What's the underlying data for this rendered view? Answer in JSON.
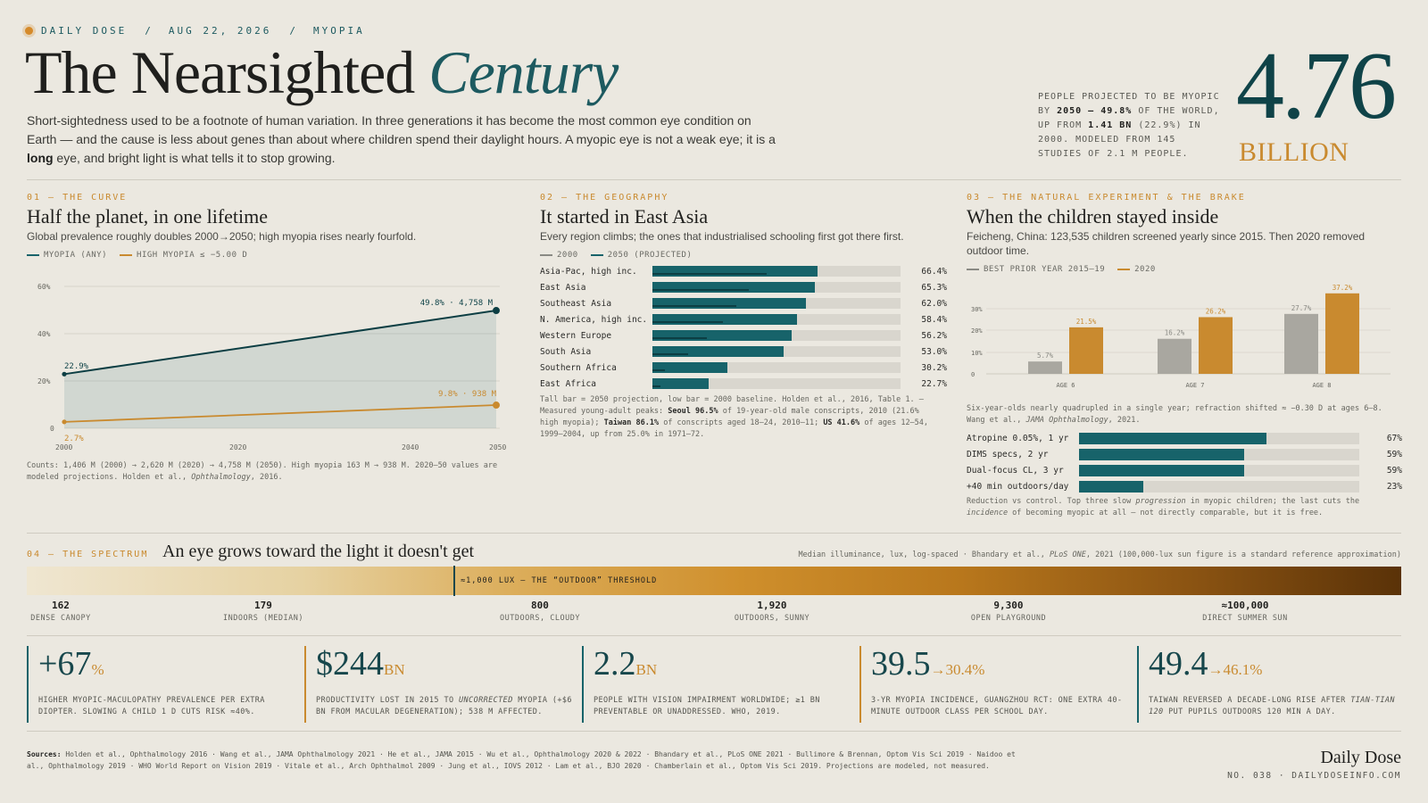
{
  "header": {
    "brand": "DAILY DOSE",
    "sep": "/",
    "date": "AUG 22, 2026",
    "topic": "MYOPIA",
    "title_main": "The Nearsighted",
    "title_accent": "Century",
    "intro_a": "Short-sightedness used to be a footnote of human variation. In three generations it has become the most common eye condition on Earth — and the cause is less about genes than about where children spend their daylight hours. A myopic eye is not a weak eye; it is a ",
    "intro_bold": "long",
    "intro_b": " eye, and bright light is what tells it to stop growing."
  },
  "headline_stat": {
    "caption_1": "PEOPLE PROJECTED TO BE MYOPIC BY ",
    "caption_b1": "2050 — 49.8%",
    "caption_2": " OF THE WORLD, UP FROM ",
    "caption_b2": "1.41 BN",
    "caption_3": " (22.9%) IN 2000. MODELED FROM 145 STUDIES OF 2.1 M PEOPLE.",
    "value": "4.76",
    "unit": "BILLION"
  },
  "sec1": {
    "kicker": "01 — THE CURVE",
    "title": "Half the planet, in one lifetime",
    "subtitle": "Global prevalence roughly doubles 2000→2050; high myopia rises nearly fourfold.",
    "legend_a": "MYOPIA (ANY)",
    "legend_b": "HIGH MYOPIA ≤ −5.00 D",
    "label_start_any": "22.9%",
    "label_end_any": "49.8% · 4,758 M",
    "label_start_high": "2.7%",
    "label_end_high": "9.8% · 938 M",
    "note": "Counts: 1,406 M (2000) → 2,620 M (2020) → 4,758 M (2050). High myopia 163 M → 938 M. 2020–50 values are modeled projections. Holden et al., ",
    "note_i": "Ophthalmology",
    "note_end": ", 2016."
  },
  "sec2": {
    "kicker": "02 — THE GEOGRAPHY",
    "title": "It started in East Asia",
    "subtitle": "Every region climbs; the ones that industrialised schooling first got there first.",
    "legend_a": "2000",
    "legend_b": "2050 (PROJECTED)",
    "note_1": "Tall bar = 2050 projection, low bar = 2000 baseline. Holden et al., 2016, Table 1. — Measured young-adult peaks: ",
    "note_b1": "Seoul 96.5%",
    "note_2": " of 19-year-old male conscripts, 2010 (21.6% high myopia); ",
    "note_b2": "Taiwan 86.1%",
    "note_3": " of conscripts aged 18–24, 2010–11; ",
    "note_b3": "US 41.6%",
    "note_4": " of ages 12–54, 1999–2004, up from 25.0% in 1971–72."
  },
  "sec3": {
    "kicker": "03 — THE NATURAL EXPERIMENT & THE BRAKE",
    "title": "When the children stayed inside",
    "subtitle": "Feicheng, China: 123,535 children screened yearly since 2015. Then 2020 removed outdoor time.",
    "legend_a": "BEST PRIOR YEAR 2015–19",
    "legend_b": "2020",
    "note_1": "Six-year-olds nearly quadrupled in a single year; refraction shifted ≈ −0.30 D at ages 6–8. Wang et al., ",
    "note_i1": "JAMA Ophthalmology",
    "note_2": ", 2021.",
    "brakes": [
      {
        "label": "Atropine 0.05%, 1 yr",
        "value": 67,
        "display": "67%"
      },
      {
        "label": "DIMS specs, 2 yr",
        "value": 59,
        "display": "59%"
      },
      {
        "label": "Dual-focus CL, 3 yr",
        "value": 59,
        "display": "59%"
      },
      {
        "label": "+40 min outdoors/day",
        "value": 23,
        "display": "23%"
      }
    ],
    "brake_note_1": "Reduction vs control. Top three slow ",
    "brake_note_i1": "progression",
    "brake_note_2": " in myopic children; the last cuts the ",
    "brake_note_i2": "incidence",
    "brake_note_3": " of becoming myopic at all — not directly comparable, but it is free."
  },
  "sec4": {
    "kicker": "04 — THE SPECTRUM",
    "title": "An eye grows toward the light it doesn't get",
    "source_1": "Median illuminance, lux, log-spaced · Bhandary et al., ",
    "source_i": "PLoS ONE",
    "source_2": ", 2021 (100,000-lux sun figure is a standard reference approximation)",
    "threshold_label": "≈1,000 LUX — THE “OUTDOOR” THRESHOLD",
    "threshold_lux": 1000,
    "stops": [
      {
        "value": "162",
        "caption": "DENSE CANOPY",
        "lux": 162
      },
      {
        "value": "179",
        "caption": "INDOORS (MEDIAN)",
        "lux": 179
      },
      {
        "value": "800",
        "caption": "OUTDOORS, CLOUDY",
        "lux": 800
      },
      {
        "value": "1,920",
        "caption": "OUTDOORS, SUNNY",
        "lux": 1920
      },
      {
        "value": "9,300",
        "caption": "OPEN PLAYGROUND",
        "lux": 9300
      },
      {
        "value": "≈100,000",
        "caption": "DIRECT SUMMER SUN",
        "lux": 100000
      }
    ]
  },
  "stats": [
    {
      "big": "+67",
      "suffix": "%",
      "caption": "HIGHER MYOPIC-MACULOPATHY PREVALENCE PER EXTRA DIOPTER. SLOWING A CHILD 1 D CUTS RISK ≈40%."
    },
    {
      "big": "$244",
      "suffix": "BN",
      "caption_a": "PRODUCTIVITY LOST IN 2015 TO ",
      "caption_i": "UNCORRECTED",
      "caption_b": " MYOPIA (+$6 BN FROM MACULAR DEGENERATION); 538 M AFFECTED."
    },
    {
      "big": "2.2",
      "suffix": "BN",
      "caption": "PEOPLE WITH VISION IMPAIRMENT WORLDWIDE; ≥1 BN PREVENTABLE OR UNADDRESSED. WHO, 2019."
    },
    {
      "big": "39.5",
      "suffix": "→30.4%",
      "caption": "3-YR MYOPIA INCIDENCE, GUANGZHOU RCT: ONE EXTRA 40-MINUTE OUTDOOR CLASS PER SCHOOL DAY."
    },
    {
      "big": "49.4",
      "suffix": "→46.1%",
      "caption_a": "TAIWAN REVERSED A DECADE-LONG RISE AFTER ",
      "caption_i": "TIAN-TIAN 120",
      "caption_b": " PUT PUPILS OUTDOORS 120 MIN A DAY."
    }
  ],
  "footer": {
    "sources_label": "Sources:",
    "sources_text": " Holden et al., Ophthalmology 2016 · Wang et al., JAMA Ophthalmology 2021 · He et al., JAMA 2015 · Wu et al., Ophthalmology 2020 & 2022 · Bhandary et al., PLoS ONE 2021 · Bullimore & Brennan, Optom Vis Sci 2019 · Naidoo et al., Ophthalmology 2019 · WHO World Report on Vision 2019 · Vitale et al., Arch Ophthalmol 2009 · Jung et al., IOVS 2012 · Lam et al., BJO 2020 · Chamberlain et al., Optom Vis Sci 2019. Projections are modeled, not measured.",
    "brand": "Daily Dose",
    "issue": "NO. 038 · DAILYDOSEINFO.COM"
  },
  "colors": {
    "teal": "#17636a",
    "teal_dark": "#0c3e43",
    "orange": "#c98a2f",
    "gray": "#a9a7a0",
    "background": "#ebe8e0"
  },
  "chart_data": [
    {
      "type": "line",
      "title": "Half the planet, in one lifetime",
      "x": [
        2000,
        2050
      ],
      "x_ticks": [
        "2000",
        "2020",
        "2040",
        "2050"
      ],
      "y_ticks": [
        "0",
        "20%",
        "40%",
        "60%"
      ],
      "ylim": [
        0,
        60
      ],
      "series": [
        {
          "name": "MYOPIA (ANY)",
          "values": [
            22.9,
            49.8
          ]
        },
        {
          "name": "HIGH MYOPIA ≤ −5.00 D",
          "values": [
            2.7,
            9.8
          ]
        }
      ]
    },
    {
      "type": "bar",
      "title": "It started in East Asia",
      "categories": [
        "Asia-Pac, high inc.",
        "East Asia",
        "Southeast Asia",
        "N. America, high inc.",
        "Western Europe",
        "South Asia",
        "Southern Africa",
        "East Africa"
      ],
      "series": [
        {
          "name": "2000",
          "values": [
            46.1,
            38.8,
            33.8,
            28.3,
            21.9,
            14.4,
            5.1,
            3.4
          ]
        },
        {
          "name": "2050 (PROJECTED)",
          "values": [
            66.4,
            65.3,
            62.0,
            58.4,
            56.2,
            53.0,
            30.2,
            22.7
          ]
        }
      ],
      "value_labels": [
        "66.4%",
        "65.3%",
        "62.0%",
        "58.4%",
        "56.2%",
        "53.0%",
        "30.2%",
        "22.7%"
      ],
      "xlim": [
        0,
        100
      ]
    },
    {
      "type": "bar",
      "title": "When the children stayed inside",
      "categories": [
        "AGE 6",
        "AGE 7",
        "AGE 8"
      ],
      "y_ticks": [
        "0",
        "10%",
        "20%",
        "30%"
      ],
      "ylim": [
        0,
        40
      ],
      "series": [
        {
          "name": "BEST PRIOR YEAR 2015–19",
          "values": [
            5.7,
            16.2,
            27.7
          ],
          "labels": [
            "5.7%",
            "16.2%",
            "27.7%"
          ]
        },
        {
          "name": "2020",
          "values": [
            21.5,
            26.2,
            37.2
          ],
          "labels": [
            "21.5%",
            "26.2%",
            "37.2%"
          ]
        }
      ]
    }
  ]
}
